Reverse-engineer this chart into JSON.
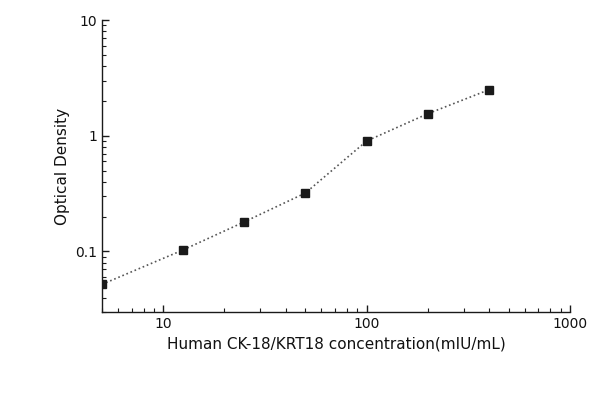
{
  "x": [
    5,
    12.5,
    25,
    50,
    100,
    200,
    400
  ],
  "y": [
    0.052,
    0.103,
    0.18,
    0.32,
    0.9,
    1.55,
    2.5
  ],
  "xlabel": "Human CK-18/KRT18 concentration(mIU/mL)",
  "ylabel": "Optical Density",
  "xlim": [
    5,
    1000
  ],
  "ylim": [
    0.03,
    10
  ],
  "xticks": [
    10,
    100,
    1000
  ],
  "yticks": [
    0.1,
    1,
    10
  ],
  "marker": "s",
  "marker_color": "#1a1a1a",
  "marker_size": 6,
  "line_style": ":",
  "line_color": "#555555",
  "line_width": 1.2,
  "background_color": "#ffffff",
  "xlabel_fontsize": 11,
  "ylabel_fontsize": 11,
  "tick_fontsize": 10,
  "spine_color": "#1a1a1a"
}
